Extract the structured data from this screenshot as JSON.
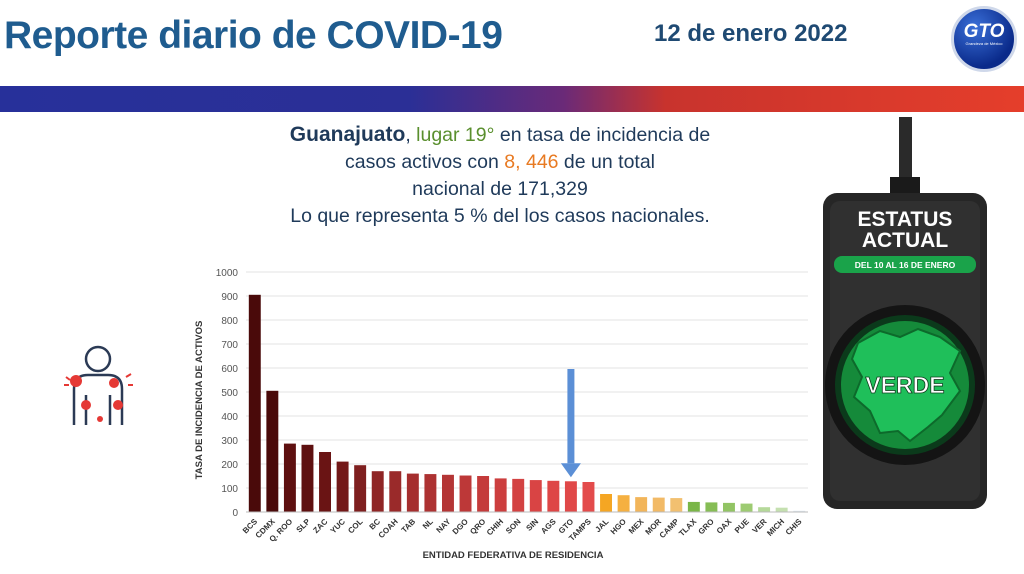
{
  "header": {
    "title": "Reporte diario de COVID-19",
    "date": "12 de enero 2022",
    "logo_text": "GTO",
    "logo_subtitle": "Grandeza de México"
  },
  "summary": {
    "state": "Guanajuato",
    "rank_text": "lugar 19°",
    "line1_suffix": " en tasa de incidencia de",
    "line2_prefix": "casos activos con  ",
    "active_cases": "8, 446",
    "line2_suffix": " de un total",
    "line3": "nacional de 171,329",
    "line4": "Lo que representa 5 % del los casos nacionales."
  },
  "status": {
    "title_line1": "ESTATUS",
    "title_line2": "ACTUAL",
    "period": "DEL 10 AL 16 DE ENERO",
    "value": "VERDE"
  },
  "colors": {
    "title": "#1f5c8f",
    "status_green": "#1aa34a",
    "highlight_arrow": "#5b8fd6"
  },
  "chart_data": {
    "type": "bar",
    "title": "",
    "xlabel": "ENTIDAD FEDERATIVA DE RESIDENCIA",
    "ylabel": "TASA DE INCIDENCIA DE ACTIVOS",
    "ylim": [
      0,
      1000
    ],
    "yticks": [
      0,
      100,
      200,
      300,
      400,
      500,
      600,
      700,
      800,
      900,
      1000
    ],
    "grid": true,
    "highlight": "GTO",
    "categories": [
      "BCS",
      "CDMX",
      "Q. ROO",
      "SLP",
      "ZAC",
      "YUC",
      "COL",
      "BC",
      "COAH",
      "TAB",
      "NL",
      "NAY",
      "DGO",
      "QRO",
      "CHIH",
      "SON",
      "SIN",
      "AGS",
      "GTO",
      "TAMPS",
      "JAL",
      "HGO",
      "MEX",
      "MOR",
      "CAMP",
      "TLAX",
      "GRO",
      "OAX",
      "PUE",
      "VER",
      "MICH",
      "CHIS"
    ],
    "values": [
      905,
      505,
      285,
      280,
      250,
      210,
      195,
      170,
      170,
      160,
      158,
      155,
      152,
      150,
      140,
      138,
      133,
      130,
      128,
      125,
      75,
      70,
      62,
      60,
      58,
      42,
      40,
      38,
      35,
      20,
      18,
      5
    ],
    "colors": [
      "#4a0a0a",
      "#4a0a0a",
      "#5e1010",
      "#5e1010",
      "#6a1414",
      "#731818",
      "#7e1f1f",
      "#8f2525",
      "#9a2a2a",
      "#a52e2e",
      "#ad3232",
      "#b43535",
      "#bd3838",
      "#c43b3b",
      "#cc3e3e",
      "#d34242",
      "#d94444",
      "#de4646",
      "#e04848",
      "#e34b4b",
      "#f5a623",
      "#f5b041",
      "#f2b55a",
      "#f2ba66",
      "#f2c070",
      "#7ab648",
      "#86bd55",
      "#92c464",
      "#9dcb72",
      "#b5d99a",
      "#c5e0b0",
      "#dfe9f2"
    ]
  }
}
